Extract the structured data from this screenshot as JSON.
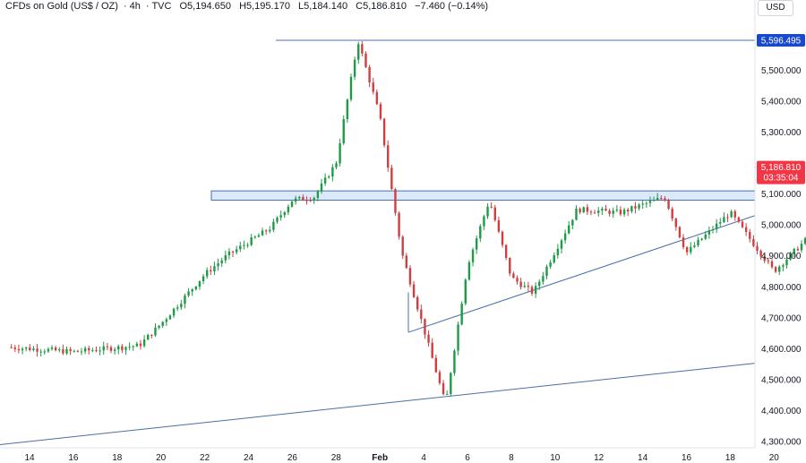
{
  "header": {
    "symbol": "CFDs on Gold (US$ / OZ)",
    "interval": "4h",
    "source": "TVC",
    "open": "O5,194.650",
    "high": "H5,195.170",
    "low": "L5,184.140",
    "close": "C5,186.810",
    "change": "−7.460 (−0.14%)"
  },
  "currency_button": "USD",
  "colors": {
    "up": "#1e9b46",
    "down": "#cf3f40",
    "line": "#4a6fa8",
    "zone_fill": "#dce9fa",
    "price_tag": "#f23645",
    "level_tag": "#1848cc"
  },
  "price_axis": [
    "5,500.000",
    "5,400.000",
    "5,300.000",
    "5,100.000",
    "5,000.000",
    "4,900.000",
    "4,800.000",
    "4,700.000",
    "4,600.000",
    "4,500.000",
    "4,400.000",
    "4,300.000"
  ],
  "time_axis": [
    "14",
    "16",
    "18",
    "20",
    "22",
    "24",
    "26",
    "28",
    "Feb",
    "4",
    "6",
    "8",
    "10",
    "12",
    "14",
    "16",
    "18",
    "20",
    "22",
    "24",
    "26"
  ],
  "level_label": "5,596.495",
  "current_price": "5,186.810",
  "countdown": "03:35:04",
  "chart_data": {
    "type": "candlestick",
    "title": "CFDs on Gold (US$ / OZ)",
    "xlabel": "",
    "ylabel": "",
    "ylim": [
      4300,
      5660
    ],
    "x_ticks": [
      "14",
      "16",
      "18",
      "20",
      "22",
      "24",
      "26",
      "28",
      "Feb",
      "4",
      "6",
      "8",
      "10",
      "12",
      "14",
      "16",
      "18",
      "20",
      "22",
      "24",
      "26"
    ],
    "horizontal_line": 5596.495,
    "resistance_zone": [
      5080,
      5110
    ],
    "last_close": 5186.81,
    "key_path_xy": [
      [
        "Jan 13",
        4605
      ],
      [
        "Jan 16",
        4590
      ],
      [
        "Jan 19",
        4610
      ],
      [
        "Jan 20",
        4680
      ],
      [
        "Jan 22",
        4840
      ],
      [
        "Jan 23",
        4900
      ],
      [
        "Jan 25",
        4990
      ],
      [
        "Jan 26",
        5080
      ],
      [
        "Jan 27",
        5090
      ],
      [
        "Jan 28",
        5200
      ],
      [
        "Jan 29",
        5596
      ],
      [
        "Jan 30",
        5350
      ],
      [
        "Jan 31",
        4910
      ],
      [
        "Feb 2",
        4420
      ],
      [
        "Feb 3",
        4870
      ],
      [
        "Feb 4",
        5080
      ],
      [
        "Feb 5",
        4830
      ],
      [
        "Feb 6",
        4780
      ],
      [
        "Feb 8",
        5050
      ],
      [
        "Feb 10",
        5040
      ],
      [
        "Feb 12",
        5090
      ],
      [
        "Feb 13",
        4910
      ],
      [
        "Feb 15",
        5040
      ],
      [
        "Feb 17",
        4850
      ],
      [
        "Feb 19",
        4990
      ],
      [
        "Feb 21",
        5050
      ],
      [
        "Feb 23",
        5240
      ],
      [
        "Feb 24",
        5120
      ],
      [
        "Feb 25",
        5187
      ]
    ]
  }
}
